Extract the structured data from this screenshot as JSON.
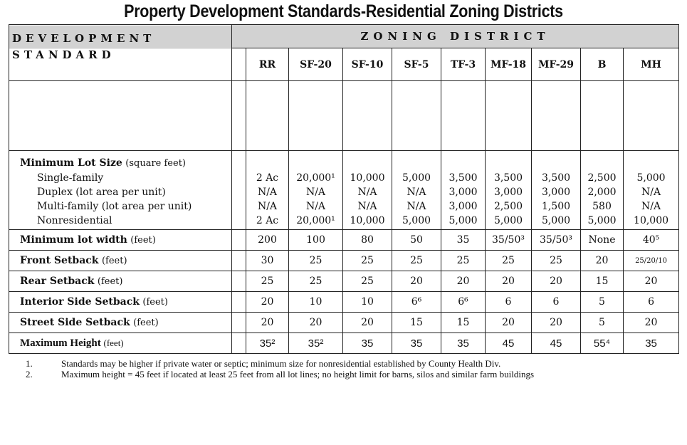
{
  "title": "Property Development Standards-Residential Zoning Districts",
  "header": {
    "development_standard": [
      "DEVELOPMENT",
      "STANDARD"
    ],
    "zoning_district": "ZONING DISTRICT",
    "districts": [
      "RR",
      "SF-20",
      "SF-10",
      "SF-5",
      "TF-3",
      "MF-18",
      "MF-29",
      "B",
      "MH"
    ]
  },
  "lot_size": {
    "label": "Minimum Lot Size",
    "unit": "(square feet)",
    "subrows": [
      {
        "label": "Single-family",
        "values": [
          "2 Ac",
          "20,000¹",
          "10,000",
          "5,000",
          "3,500",
          "3,500",
          "3,500",
          "2,500",
          "5,000"
        ]
      },
      {
        "label": "Duplex (lot area per unit)",
        "values": [
          "N/A",
          "N/A",
          "N/A",
          "N/A",
          "3,000",
          "3,000",
          "3,000",
          "2,000",
          "N/A"
        ]
      },
      {
        "label": "Multi-family (lot area per unit)",
        "values": [
          "N/A",
          "N/A",
          "N/A",
          "N/A",
          "3,000",
          "2,500",
          "1,500",
          "580",
          "N/A"
        ]
      },
      {
        "label": "Nonresidential",
        "values": [
          "2 Ac",
          "20,000¹",
          "10,000",
          "5,000",
          "5,000",
          "5,000",
          "5,000",
          "5,000",
          "10,000"
        ]
      }
    ]
  },
  "rows": [
    {
      "label": "Minimum lot width",
      "unit": "(feet)",
      "values": [
        "200",
        "100",
        "80",
        "50",
        "35",
        "35/50³",
        "35/50³",
        "None",
        "40⁵"
      ]
    },
    {
      "label": "Front Setback",
      "unit": "(feet)",
      "values": [
        "30",
        "25",
        "25",
        "25",
        "25",
        "25",
        "25",
        "20",
        "25/20/10"
      ]
    },
    {
      "label": "Rear Setback",
      "unit": "(feet)",
      "values": [
        "25",
        "25",
        "25",
        "20",
        "20",
        "20",
        "20",
        "15",
        "20"
      ]
    },
    {
      "label": "Interior Side Setback",
      "unit": "(feet)",
      "values": [
        "20",
        "10",
        "10",
        "6⁶",
        "6⁶",
        "6",
        "6",
        "5",
        "6"
      ]
    },
    {
      "label": "Street Side Setback",
      "unit": "(feet)",
      "values": [
        "20",
        "20",
        "20",
        "15",
        "15",
        "20",
        "20",
        "5",
        "20"
      ]
    },
    {
      "label": "Maximum Height",
      "unit": "(feet)",
      "values": [
        "35²",
        "35²",
        "35",
        "35",
        "35",
        "45",
        "45",
        "55⁴",
        "35"
      ]
    }
  ],
  "footnotes": [
    {
      "num": "1.",
      "text": "Standards may be higher if private water or septic; minimum size for nonresidential established by County Health Div."
    },
    {
      "num": "2.",
      "text": "Maximum height = 45 feet if located at least 25 feet from all lot lines; no height limit for barns, silos and similar farm buildings"
    }
  ]
}
